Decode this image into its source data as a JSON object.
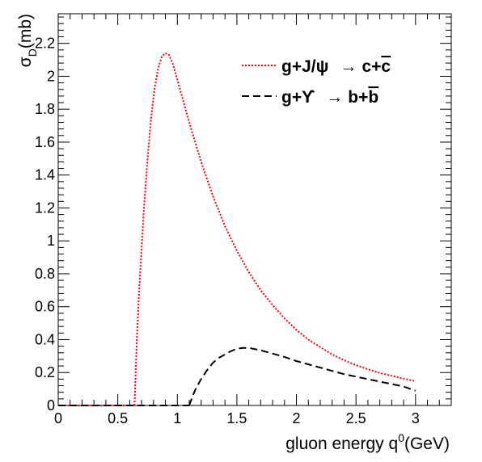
{
  "chart_data": {
    "type": "line",
    "xlabel": "gluon energy q",
    "xlabel_sup": "0",
    "xlabel_unit": "(GeV)",
    "ylabel": "σ",
    "ylabel_sub": "D",
    "ylabel_unit": "(mb)",
    "xlim": [
      0,
      3.3
    ],
    "ylim": [
      0,
      2.38
    ],
    "xticks": [
      0,
      0.5,
      1,
      1.5,
      2,
      2.5,
      3
    ],
    "xtick_labels": [
      "0",
      "0.5",
      "1",
      "1.5",
      "2",
      "2.5",
      "3"
    ],
    "yticks": [
      0,
      0.2,
      0.4,
      0.6,
      0.8,
      1,
      1.2,
      1.4,
      1.6,
      1.8,
      2,
      2.2
    ],
    "ytick_labels": [
      "0",
      "0.2",
      "0.4",
      "0.6",
      "0.8",
      "1",
      "1.2",
      "1.4",
      "1.6",
      "1.8",
      "2",
      "2.2"
    ],
    "legend_position": "top-right",
    "series": [
      {
        "name": "g+J/ψ → c+c̄",
        "legend_parts": [
          "g+J/ψ",
          "→",
          "c+",
          "c"
        ],
        "style": "dotted",
        "color": "#ff0000",
        "x": [
          0.64,
          0.66,
          0.68,
          0.7,
          0.72,
          0.75,
          0.78,
          0.81,
          0.84,
          0.87,
          0.9,
          0.93,
          0.96,
          1.0,
          1.05,
          1.1,
          1.2,
          1.3,
          1.4,
          1.5,
          1.6,
          1.7,
          1.8,
          1.9,
          2.0,
          2.1,
          2.2,
          2.3,
          2.4,
          2.5,
          2.6,
          2.7,
          2.8,
          2.9,
          3.0
        ],
        "y": [
          0.0,
          0.4,
          0.7,
          0.95,
          1.2,
          1.5,
          1.75,
          1.93,
          2.05,
          2.12,
          2.14,
          2.13,
          2.08,
          1.98,
          1.85,
          1.72,
          1.48,
          1.27,
          1.09,
          0.94,
          0.81,
          0.7,
          0.61,
          0.53,
          0.46,
          0.4,
          0.355,
          0.31,
          0.275,
          0.245,
          0.22,
          0.198,
          0.18,
          0.163,
          0.148
        ]
      },
      {
        "name": "g+ϒ → b+b̄",
        "legend_parts": [
          "g+ϒ",
          "→",
          "b+",
          "b"
        ],
        "style": "dashed",
        "color": "#000000",
        "x": [
          1.1,
          1.13,
          1.16,
          1.2,
          1.25,
          1.3,
          1.35,
          1.4,
          1.45,
          1.5,
          1.55,
          1.6,
          1.7,
          1.8,
          1.9,
          2.0,
          2.1,
          2.2,
          2.3,
          2.4,
          2.5,
          2.6,
          2.7,
          2.8,
          2.9,
          3.0
        ],
        "y": [
          0.0,
          0.06,
          0.11,
          0.16,
          0.215,
          0.26,
          0.29,
          0.31,
          0.33,
          0.345,
          0.35,
          0.35,
          0.335,
          0.315,
          0.295,
          0.27,
          0.25,
          0.23,
          0.21,
          0.19,
          0.175,
          0.16,
          0.145,
          0.13,
          0.115,
          0.09
        ]
      }
    ]
  }
}
